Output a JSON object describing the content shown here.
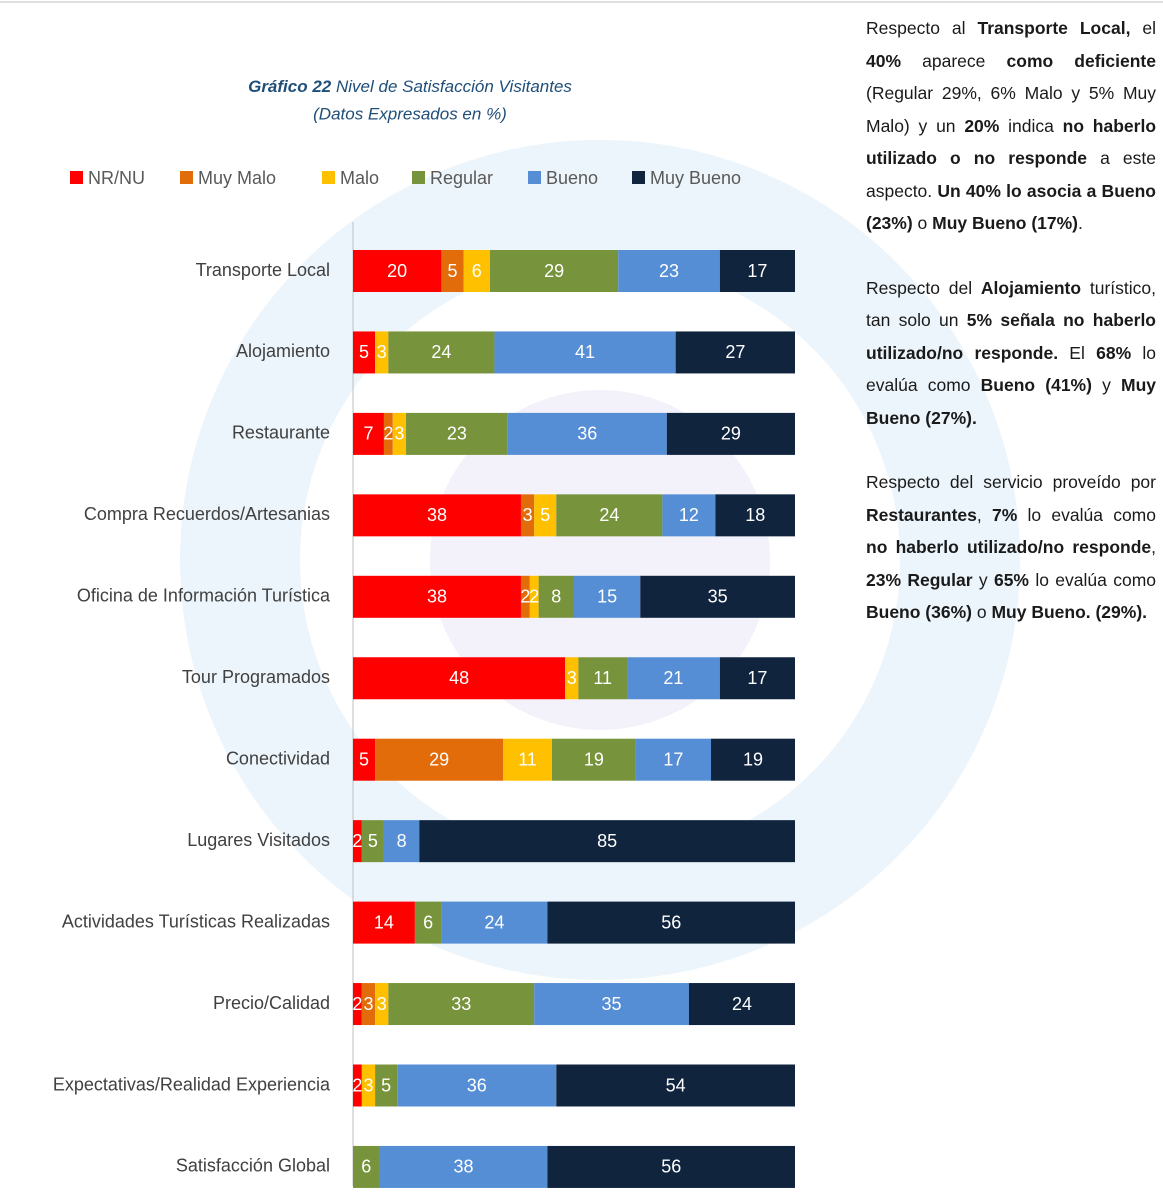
{
  "chart_data": {
    "type": "stacked_bar_horizontal",
    "title_label": "Gráfico 22",
    "title": "Nivel de Satisfacción Visitantes",
    "subtitle": "(Datos Expresados en %)",
    "categories": [
      "Transporte Local",
      "Alojamiento",
      "Restaurante",
      "Compra Recuerdos/Artesanias",
      "Oficina de Información Turística",
      "Tour Programados",
      "Conectividad",
      "Lugares Visitados",
      "Actividades Turísticas Realizadas",
      "Precio/Calidad",
      "Expectativas/Realidad Experiencia",
      "Satisfacción Global"
    ],
    "xlim": [
      0,
      100
    ],
    "legend": "top",
    "series": [
      {
        "name": "NR/NU",
        "color": "#ff0000",
        "values": [
          20,
          5,
          7,
          38,
          38,
          48,
          5,
          2,
          14,
          2,
          2,
          null
        ]
      },
      {
        "name": "Muy Malo",
        "color": "#e36c0a",
        "values": [
          5,
          null,
          2,
          3,
          2,
          null,
          29,
          null,
          null,
          3,
          null,
          null
        ]
      },
      {
        "name": "Malo",
        "color": "#ffc000",
        "values": [
          6,
          3,
          3,
          5,
          2,
          3,
          11,
          null,
          null,
          3,
          3,
          null
        ]
      },
      {
        "name": "Regular",
        "color": "#77933c",
        "values": [
          29,
          24,
          23,
          24,
          8,
          11,
          19,
          5,
          6,
          33,
          5,
          6
        ]
      },
      {
        "name": "Bueno",
        "color": "#558ed5",
        "values": [
          23,
          41,
          36,
          12,
          15,
          21,
          17,
          8,
          24,
          35,
          36,
          38
        ]
      },
      {
        "name": "Muy Bueno",
        "color": "#10243e",
        "values": [
          17,
          27,
          29,
          18,
          35,
          17,
          19,
          85,
          56,
          24,
          54,
          56
        ]
      }
    ]
  },
  "text": {
    "paragraphs": [
      [
        {
          "text": "Respecto al ",
          "bold": false
        },
        {
          "text": "Transporte Local,",
          "bold": true
        },
        {
          "text": " el ",
          "bold": false
        },
        {
          "text": "40%",
          "bold": true
        },
        {
          "text": " aparece ",
          "bold": false
        },
        {
          "text": "como deficiente",
          "bold": true
        },
        {
          "text": " (Regular 29%, 6% Malo y 5% Muy Malo) y un ",
          "bold": false
        },
        {
          "text": "20%",
          "bold": true
        },
        {
          "text": " indica ",
          "bold": false
        },
        {
          "text": "no haberlo utilizado o no responde",
          "bold": true
        },
        {
          "text": " a este aspecto. ",
          "bold": false
        },
        {
          "text": "Un 40% lo asocia a Bueno (23%)",
          "bold": true
        },
        {
          "text": " o ",
          "bold": false
        },
        {
          "text": "Muy Bueno (17%)",
          "bold": true
        },
        {
          "text": ".",
          "bold": false
        }
      ],
      [
        {
          "text": "Respecto del ",
          "bold": false
        },
        {
          "text": "Alojamiento",
          "bold": true
        },
        {
          "text": " turístico, tan solo un ",
          "bold": false
        },
        {
          "text": "5% señala no haberlo utilizado/no responde.",
          "bold": true
        },
        {
          "text": " El ",
          "bold": false
        },
        {
          "text": "68%",
          "bold": true
        },
        {
          "text": " lo evalúa como ",
          "bold": false
        },
        {
          "text": "Bueno (41%)",
          "bold": true
        },
        {
          "text": " y ",
          "bold": false
        },
        {
          "text": "Muy Bueno (27%).",
          "bold": true
        }
      ],
      [
        {
          "text": "Respecto del servicio proveído por ",
          "bold": false
        },
        {
          "text": "Restaurantes",
          "bold": true
        },
        {
          "text": ", ",
          "bold": false
        },
        {
          "text": "7%",
          "bold": true
        },
        {
          "text": " lo evalúa como ",
          "bold": false
        },
        {
          "text": "no haberlo utilizado/no responde",
          "bold": true
        },
        {
          "text": ", ",
          "bold": false
        },
        {
          "text": "23% Regular",
          "bold": true
        },
        {
          "text": " y ",
          "bold": false
        },
        {
          "text": "65%",
          "bold": true
        },
        {
          "text": " lo evalúa como ",
          "bold": false
        },
        {
          "text": "Bueno (36%)",
          "bold": true
        },
        {
          "text": " o ",
          "bold": false
        },
        {
          "text": "Muy Bueno. (29%).",
          "bold": true
        }
      ]
    ]
  }
}
